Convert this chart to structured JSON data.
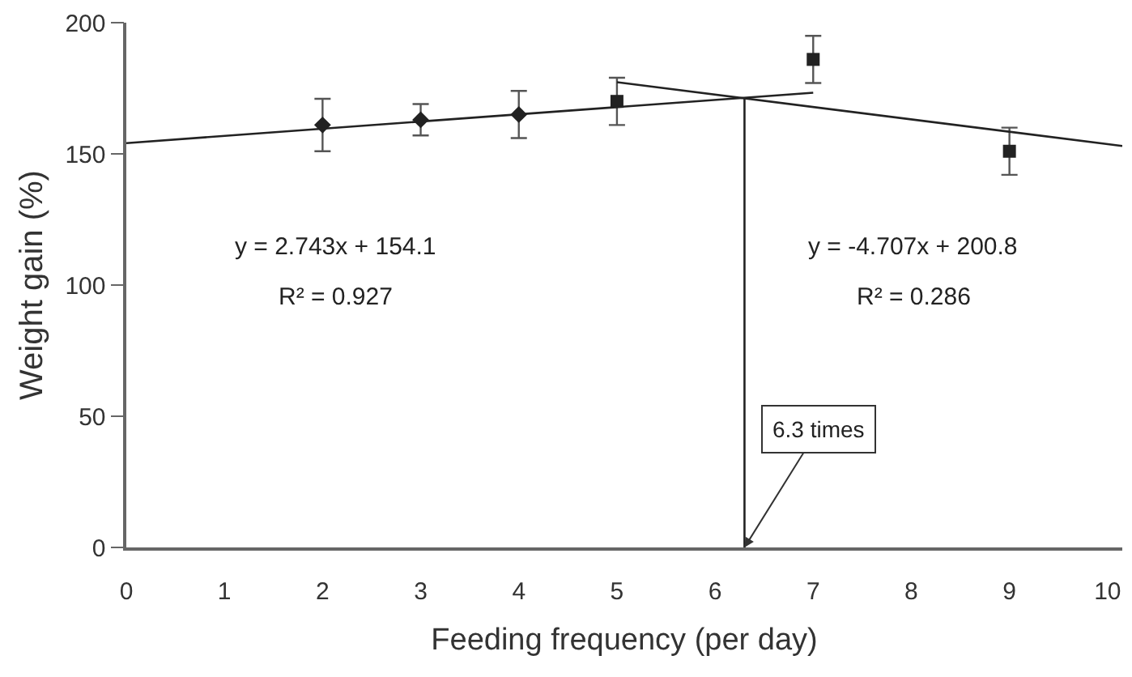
{
  "chart_data": {
    "type": "scatter",
    "xlabel": "Feeding frequency (per day)",
    "ylabel": "Weight gain (%)",
    "xlim": [
      0,
      10.15
    ],
    "xticks": [
      0,
      1,
      2,
      3,
      4,
      5,
      6,
      7,
      8,
      9,
      10
    ],
    "ylim": [
      0,
      200
    ],
    "yticks": [
      0,
      50,
      100,
      150,
      200
    ],
    "legend": false,
    "series": [
      {
        "x": [
          2,
          3,
          4
        ],
        "values": [
          161,
          163,
          165
        ],
        "errors": [
          10,
          6,
          9
        ],
        "color": "#222222",
        "marker": "diamond"
      },
      {
        "x": [
          5,
          7,
          9
        ],
        "values": [
          170,
          186,
          151
        ],
        "errors": [
          9,
          9,
          9
        ],
        "color": "#222222",
        "marker": "square"
      },
      {
        "type": "line",
        "x": [
          0,
          7
        ],
        "values": [
          154.1,
          173.3
        ],
        "color": "#222222",
        "marker": "none",
        "line_style": "solid"
      },
      {
        "type": "line",
        "x": [
          5,
          10.15
        ],
        "values": [
          177.3,
          153.0
        ],
        "color": "#222222",
        "marker": "none",
        "line_style": "solid"
      },
      {
        "type": "line",
        "x": [
          6.3,
          6.3
        ],
        "values": [
          171.6,
          0
        ],
        "color": "#222222",
        "marker": "none",
        "line_style": "solid"
      }
    ],
    "annotations": [
      "y = 2.743x + 154.1",
      "R² = 0.927",
      "y = -4.707x + 200.8",
      "R² = 0.286",
      {
        "text": "6.3 times",
        "x": 6.3,
        "y": 0
      }
    ]
  }
}
